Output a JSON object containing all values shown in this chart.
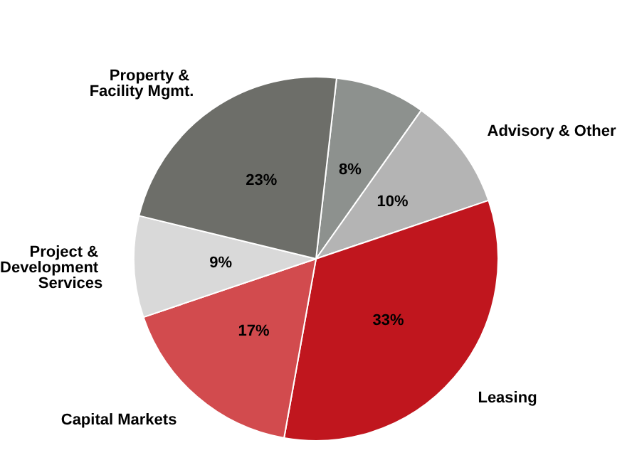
{
  "chart_data": {
    "type": "pie",
    "categories": [
      null,
      "Advisory & Other",
      "Leasing",
      "Capital Markets",
      "Project & Development Services",
      "Property & Facility Mgmt."
    ],
    "values": [
      8,
      10,
      33,
      17,
      9,
      23
    ],
    "colors": [
      "#8d918e",
      "#b4b4b4",
      "#c0161e",
      "#d24b4e",
      "#d9d9d9",
      "#6d6e69"
    ],
    "value_labels": [
      "8%",
      "10%",
      "33%",
      "17%",
      "9%",
      "23%"
    ]
  }
}
